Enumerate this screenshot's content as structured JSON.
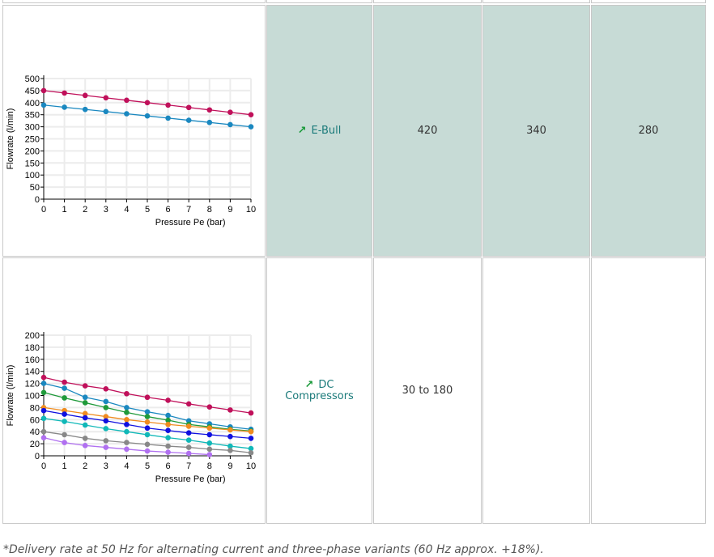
{
  "table": {
    "rows": [
      {
        "product": "E-Bull",
        "values": [
          "420",
          "340",
          "280"
        ]
      },
      {
        "product_line1": "DC",
        "product_line2": "Compressors",
        "values": [
          "30 to 180",
          "",
          ""
        ]
      }
    ]
  },
  "footnote": "*Delivery rate at 50 Hz for alternating current and three-phase variants (60 Hz approx. +18%).",
  "chart_data": [
    {
      "type": "line",
      "xlabel": "Pressure Pe (bar)",
      "ylabel": "Flowrate (l/min)",
      "xlim": [
        0,
        10
      ],
      "ylim": [
        0,
        500
      ],
      "yticks": [
        0,
        50,
        100,
        150,
        200,
        250,
        300,
        350,
        400,
        450,
        500
      ],
      "xticks": [
        0,
        1,
        2,
        3,
        4,
        5,
        6,
        7,
        8,
        9,
        10
      ],
      "grid": true,
      "series": [
        {
          "name": "series-1",
          "color": "#c0105a",
          "x": [
            0,
            1,
            2,
            3,
            4,
            5,
            6,
            7,
            8,
            9,
            10
          ],
          "values": [
            450,
            440,
            430,
            420,
            410,
            400,
            390,
            380,
            370,
            360,
            350
          ]
        },
        {
          "name": "series-2",
          "color": "#1a88c0",
          "x": [
            0,
            1,
            2,
            3,
            4,
            5,
            6,
            7,
            8,
            9,
            10
          ],
          "values": [
            390,
            381,
            372,
            363,
            354,
            345,
            336,
            327,
            318,
            309,
            300
          ]
        }
      ]
    },
    {
      "type": "line",
      "xlabel": "Pressure Pe (bar)",
      "ylabel": "Flowrate (l/min)",
      "xlim": [
        0,
        10
      ],
      "ylim": [
        0,
        200
      ],
      "yticks": [
        0,
        20,
        40,
        60,
        80,
        100,
        120,
        140,
        160,
        180,
        200
      ],
      "xticks": [
        0,
        1,
        2,
        3,
        4,
        5,
        6,
        7,
        8,
        9,
        10
      ],
      "grid": true,
      "series": [
        {
          "name": "series-1",
          "color": "#c0105a",
          "x": [
            0,
            1,
            2,
            3,
            4,
            5,
            6,
            7,
            8,
            9,
            10
          ],
          "values": [
            130,
            122,
            116,
            111,
            103,
            97,
            92,
            86,
            81,
            76,
            71
          ]
        },
        {
          "name": "series-2",
          "color": "#1a88c0",
          "x": [
            0,
            1,
            2,
            3,
            4,
            5,
            6,
            7,
            8,
            9,
            10
          ],
          "values": [
            120,
            112,
            97,
            90,
            80,
            73,
            67,
            58,
            53,
            48,
            44
          ]
        },
        {
          "name": "series-3",
          "color": "#1f9a3a",
          "x": [
            0,
            1,
            2,
            3,
            4,
            5,
            6,
            7,
            8,
            9,
            10
          ],
          "values": [
            105,
            96,
            88,
            80,
            72,
            65,
            59,
            52,
            48,
            44,
            41
          ]
        },
        {
          "name": "series-4",
          "color": "#f08c20",
          "x": [
            0,
            1,
            2,
            3,
            4,
            5,
            6,
            7,
            8,
            9,
            10
          ],
          "values": [
            80,
            75,
            70,
            65,
            60,
            56,
            52,
            49,
            46,
            43,
            40
          ]
        },
        {
          "name": "series-5",
          "color": "#1010e0",
          "x": [
            0,
            1,
            2,
            3,
            4,
            5,
            6,
            7,
            8,
            9,
            10
          ],
          "values": [
            75,
            69,
            63,
            58,
            52,
            46,
            42,
            38,
            35,
            32,
            29
          ]
        },
        {
          "name": "series-6",
          "color": "#10b8b8",
          "x": [
            0,
            1,
            2,
            3,
            4,
            5,
            6,
            7,
            8,
            9,
            10
          ],
          "values": [
            62,
            57,
            51,
            45,
            40,
            35,
            30,
            26,
            21,
            16,
            12
          ]
        },
        {
          "name": "series-7",
          "color": "#888888",
          "x": [
            0,
            1,
            2,
            3,
            4,
            5,
            6,
            7,
            8,
            9,
            10
          ],
          "values": [
            40,
            35,
            29,
            25,
            22,
            19,
            16,
            14,
            11,
            9,
            5
          ]
        },
        {
          "name": "series-8",
          "color": "#b070f0",
          "x": [
            0,
            1,
            2,
            3,
            4,
            5,
            6,
            7,
            8
          ],
          "values": [
            30,
            22,
            17,
            14,
            11,
            8,
            6,
            4,
            2
          ]
        }
      ]
    }
  ]
}
